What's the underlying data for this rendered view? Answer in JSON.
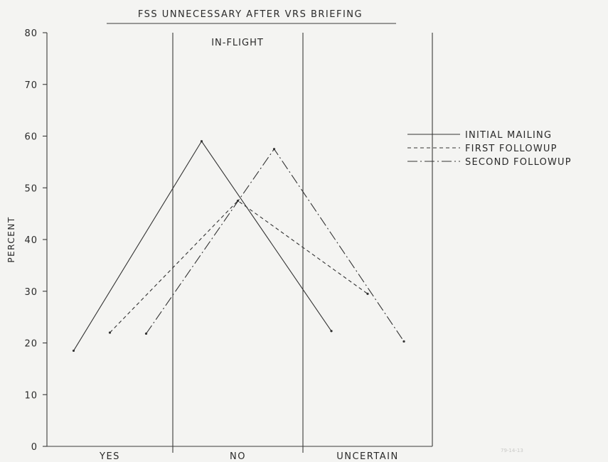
{
  "chart_data": {
    "type": "line",
    "title": "FSS UNNECESSARY AFTER VRS BRIEFING",
    "panel_label": "IN-FLIGHT",
    "ylabel": "PERCENT",
    "xlabel": "",
    "ylim": [
      0,
      80
    ],
    "yticks": [
      "0",
      "10",
      "20",
      "30",
      "40",
      "50",
      "60",
      "70",
      "80"
    ],
    "categories": [
      "YES",
      "NO",
      "UNCERTAIN"
    ],
    "grid": false,
    "legend_position": "right",
    "series": [
      {
        "name": "INITIAL MAILING",
        "style": "solid",
        "values": [
          18.5,
          59,
          22.3
        ]
      },
      {
        "name": "FIRST FOLLOWUP",
        "style": "dashed",
        "values": [
          22,
          47.5,
          29.5
        ]
      },
      {
        "name": "SECOND FOLLOWUP",
        "style": "dashdot",
        "values": [
          21.8,
          57.5,
          20.3
        ]
      }
    ],
    "stamp": "79-14-13"
  }
}
